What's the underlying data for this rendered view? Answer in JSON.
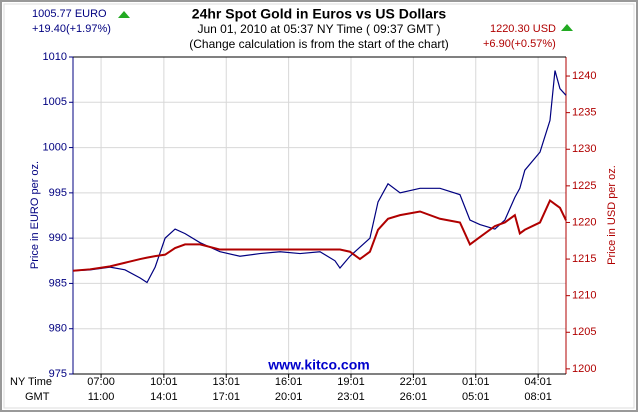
{
  "chart_data": {
    "type": "line",
    "title": "24hr Spot Gold in Euros vs US Dollars",
    "subtitle": [
      "Jun 01, 2010 at 05:37 NY Time ( 09:37 GMT )",
      "(Change calculation is from the start of the chart)"
    ],
    "left_quote": {
      "price": "1005.77 EURO",
      "change": "+19.40(+1.97%)"
    },
    "right_quote": {
      "price": "1220.30 USD",
      "change": "+6.90(+0.57%)"
    },
    "watermark": "www.kitco.com",
    "ylabel": "Price in EURO per oz.",
    "y2label": "Price in USD per oz.",
    "xlabel_rows": [
      "NY Time",
      "GMT"
    ],
    "x": [
      -1.35,
      -0.53,
      0.43,
      1.15,
      1.88,
      2.21,
      2.6,
      3.08,
      3.56,
      4.04,
      4.76,
      5.72,
      6.68,
      7.64,
      8.61,
      9.57,
      10.53,
      11.25,
      11.49,
      11.97,
      12.45,
      12.93,
      13.32,
      13.8,
      14.38,
      15.34,
      16.3,
      17.26,
      17.74,
      18.22,
      18.94,
      19.42,
      19.9,
      20.14,
      20.38,
      21.11,
      21.59,
      21.83,
      22.07,
      22.36
    ],
    "xlim": [
      -1.35,
      22.36
    ],
    "xticks": [
      {
        "value": 0,
        "label": "07:00"
      },
      {
        "value": 3.02,
        "label": "10:01"
      },
      {
        "value": 6.02,
        "label": "13:01"
      },
      {
        "value": 9.02,
        "label": "16:01"
      },
      {
        "value": 12.02,
        "label": "19:01"
      },
      {
        "value": 15.02,
        "label": "22:01"
      },
      {
        "value": 18.02,
        "label": "01:01"
      },
      {
        "value": 21.02,
        "label": "04:01"
      }
    ],
    "xticks_gmt": [
      "11:00",
      "14:01",
      "17:01",
      "20:01",
      "23:01",
      "26:01",
      "05:01",
      "08:01"
    ],
    "ylim": [
      975,
      1010
    ],
    "yticks": [
      975,
      980,
      985,
      990,
      995,
      1000,
      1005,
      1010
    ],
    "y2lim": [
      1199.3,
      1242.6
    ],
    "y2ticks": [
      1200,
      1205,
      1210,
      1215,
      1220,
      1225,
      1230,
      1235,
      1240
    ],
    "grid": true,
    "series": [
      {
        "name": "EURO",
        "color": "#000080",
        "axis": "y",
        "values": [
          986.4,
          986.5,
          986.8,
          986.5,
          985.6,
          985.1,
          986.8,
          990,
          991,
          990.5,
          989.5,
          988.5,
          988,
          988.3,
          988.5,
          988.3,
          988.5,
          987.5,
          986.7,
          988,
          989,
          990,
          994,
          996,
          995,
          995.5,
          995.5,
          994.8,
          992,
          991.5,
          991,
          992,
          994.5,
          995.5,
          997.5,
          999.5,
          1003,
          1008.5,
          1006.5,
          1005.77
        ]
      },
      {
        "name": "USD",
        "color": "#b00000",
        "axis": "y2",
        "values": [
          1213.4,
          1213.6,
          1214,
          1214.5,
          1215,
          1215.2,
          1215.4,
          1215.6,
          1216.5,
          1217,
          1217,
          1216.3,
          1216.3,
          1216.3,
          1216.3,
          1216.3,
          1216.3,
          1216.3,
          1216.3,
          1216,
          1215,
          1216,
          1219,
          1220.5,
          1221,
          1221.5,
          1220.5,
          1220,
          1217,
          1218,
          1219.5,
          1220,
          1221,
          1218.5,
          1219,
          1220,
          1223,
          1222.5,
          1222,
          1220.3
        ]
      }
    ]
  }
}
